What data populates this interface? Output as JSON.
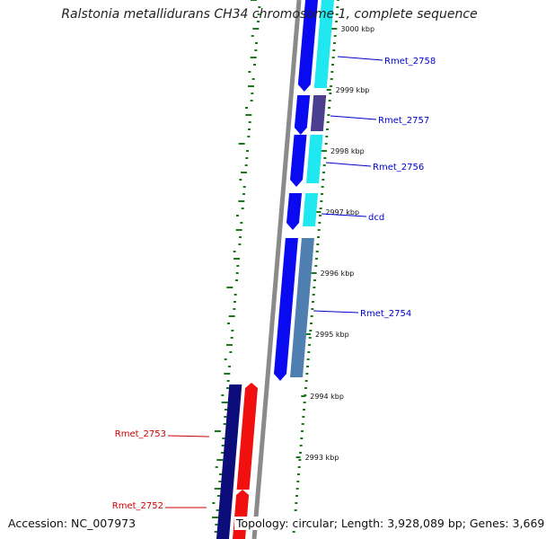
{
  "title": "Ralstonia metallidurans CH34 chromosome 1, complete sequence",
  "footer": {
    "accession": "Accession: NC_007973",
    "topology": "Topology: circular; Length: 3,928,089 bp; Genes: 3,669"
  },
  "colors": {
    "backbone": "#8a8a8a",
    "forward_cds": "#0a0af0",
    "forward_orf": "#1fe8f0",
    "reverse_cds": "#f01010",
    "reverse_orf": "#0c0c7a",
    "forward_label": "#0000cc",
    "reverse_label": "#cc0000",
    "gc_ticks": "#1a7a1a"
  },
  "ticks": [
    {
      "label": "3000 kbp"
    },
    {
      "label": "2999 kbp"
    },
    {
      "label": "2998 kbp"
    },
    {
      "label": "2997 kbp"
    },
    {
      "label": "2996 kbp"
    },
    {
      "label": "2995 kbp"
    },
    {
      "label": "2994 kbp"
    },
    {
      "label": "2993 kbp"
    }
  ],
  "genes": [
    {
      "label": "Rmet_2758",
      "strand": "forward"
    },
    {
      "label": "Rmet_2757",
      "strand": "forward"
    },
    {
      "label": "Rmet_2756",
      "strand": "forward"
    },
    {
      "label": "dcd",
      "strand": "forward"
    },
    {
      "label": "Rmet_2754",
      "strand": "forward"
    },
    {
      "label": "Rmet_2753",
      "strand": "reverse"
    },
    {
      "label": "Rmet_2752",
      "strand": "reverse"
    }
  ]
}
